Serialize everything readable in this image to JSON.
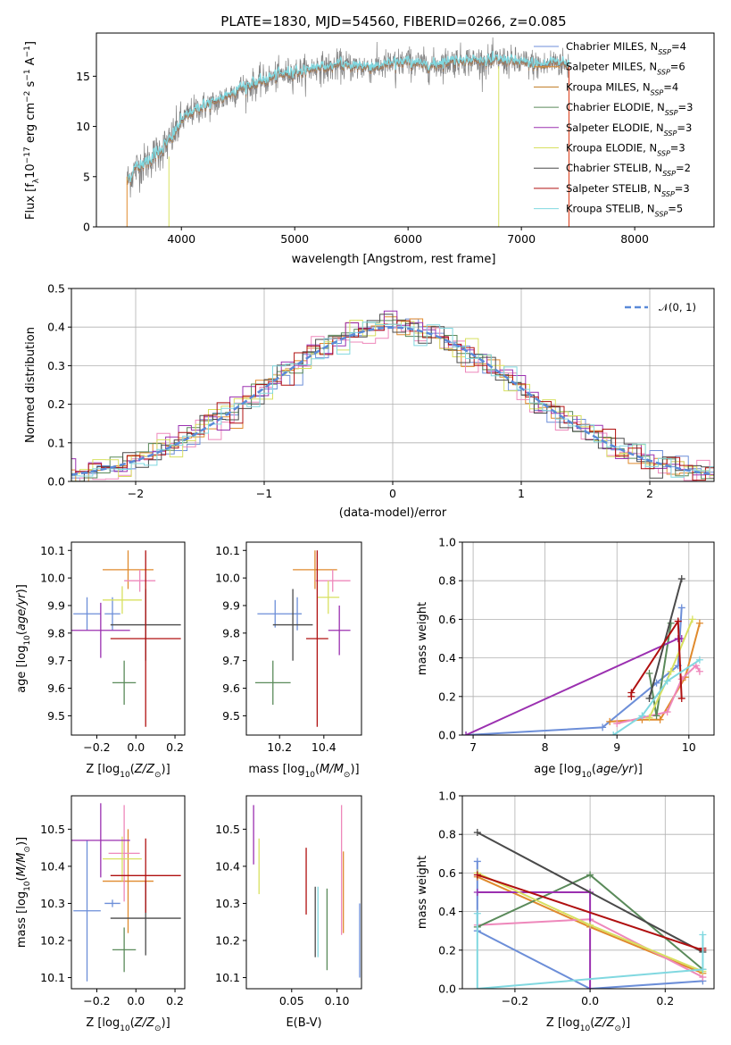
{
  "title": "PLATE=1830, MJD=54560, FIBERID=0266, z=0.085",
  "colors": [
    "#6c8ed8",
    "#e08a2d",
    "#ee88bb",
    "#5a8a5a",
    "#9b30b0",
    "#d8e060",
    "#4a4a4a",
    "#b01010",
    "#80d8e0"
  ],
  "chart_data": [
    {
      "id": "spectrum",
      "type": "line",
      "xlabel": "wavelength [Angstrom, rest frame]",
      "ylabel": "Flux [f",
      "ylabel_main": "Flux [f",
      "ylabel_sub": "λ",
      "ylabel_mid": "10",
      "ylabel_sup1": "−17",
      "ylabel_mid2": " erg cm",
      "ylabel_sup2": "−2",
      "ylabel_mid3": " s",
      "ylabel_sup3": "−1",
      "ylabel_mid4": " A",
      "ylabel_sup4": "−1",
      "ylabel_end": "]",
      "xlim": [
        3250,
        8700
      ],
      "ylim": [
        0,
        19.3
      ],
      "xticks": [
        4000,
        5000,
        6000,
        7000,
        8000
      ],
      "yticks": [
        0,
        5,
        10,
        15
      ],
      "series": [
        {
          "name": "Chabrier MILES, N",
          "sub": "SSP",
          "suffix": "=4",
          "color": "#6c8ed8"
        },
        {
          "name": "Salpeter MILES, N",
          "sub": "SSP",
          "suffix": "=6",
          "color": "#e08a2d"
        },
        {
          "name": "Kroupa MILES, N",
          "sub": "SSP",
          "suffix": "=4",
          "color": "#c07a20"
        },
        {
          "name": "Chabrier ELODIE, N",
          "sub": "SSP",
          "suffix": "=3",
          "color": "#5a8a5a"
        },
        {
          "name": "Salpeter ELODIE, N",
          "sub": "SSP",
          "suffix": "=3",
          "color": "#9b30b0"
        },
        {
          "name": "Kroupa ELODIE, N",
          "sub": "SSP",
          "suffix": "=3",
          "color": "#d8e060"
        },
        {
          "name": "Chabrier STELIB, N",
          "sub": "SSP",
          "suffix": "=2",
          "color": "#4a4a4a"
        },
        {
          "name": "Salpeter STELIB, N",
          "sub": "SSP",
          "suffix": "=3",
          "color": "#b01010"
        },
        {
          "name": "Kroupa STELIB, N",
          "sub": "SSP",
          "suffix": "=5",
          "color": "#80d8e0"
        }
      ],
      "anchors_x": [
        3520,
        3600,
        3700,
        3800,
        3900,
        4000,
        4100,
        4200,
        4300,
        4400,
        4500,
        4600,
        4700,
        4800,
        4900,
        5000,
        5100,
        5200,
        5300,
        5400,
        5500,
        5600,
        5700,
        5800,
        5900,
        6000,
        6100,
        6200,
        6300,
        6400,
        6500,
        6600,
        6700,
        6800,
        6900,
        7000,
        7100,
        7200,
        7300,
        7420
      ],
      "anchors_y": [
        4.5,
        5.8,
        6.5,
        7.5,
        8.5,
        10.5,
        11.5,
        12.0,
        12.3,
        13.0,
        13.7,
        14.0,
        14.4,
        14.8,
        15.2,
        15.4,
        15.5,
        15.9,
        15.8,
        16.1,
        16.0,
        15.9,
        15.9,
        16.1,
        16.3,
        16.4,
        16.2,
        16.0,
        16.3,
        16.5,
        16.6,
        16.5,
        16.4,
        16.6,
        16.4,
        16.3,
        16.2,
        16.0,
        16.5,
        16.0
      ]
    },
    {
      "id": "residuals",
      "type": "step",
      "xlabel": "(data-model)/error",
      "ylabel": "Normed distribution",
      "xlim": [
        -2.5,
        2.5
      ],
      "ylim": [
        0,
        0.5
      ],
      "xticks": [
        -2,
        -1,
        0,
        1,
        2
      ],
      "xtick_labels": [
        "−2",
        "−1",
        "0",
        "1",
        "2"
      ],
      "yticks": [
        0.0,
        0.1,
        0.2,
        0.3,
        0.4,
        0.5
      ],
      "ytick_labels": [
        "0.0",
        "0.1",
        "0.2",
        "0.3",
        "0.4",
        "0.5"
      ],
      "legend": "𝒩(0, 1)",
      "legend_position": "top-right",
      "bin_width": 0.1
    },
    {
      "id": "age-vs-Z",
      "type": "errorbar",
      "xlabel": "Z [log",
      "xlabel_sub": "10",
      "xlabel_rest": "(Z/Z",
      "xlabel_sun": "⊙",
      "xlabel_end": ")]",
      "ylabel": "age  [log",
      "ylabel_sub": "10",
      "ylabel_rest": "(age/yr)]",
      "xlim": [
        -0.33,
        0.25
      ],
      "ylim": [
        9.43,
        10.13
      ],
      "xticks": [
        -0.2,
        0.0,
        0.2
      ],
      "xtick_labels": [
        "−0.2",
        "0.0",
        "0.2"
      ],
      "yticks": [
        9.5,
        9.6,
        9.7,
        9.8,
        9.9,
        10.0,
        10.1
      ],
      "ytick_labels": [
        "9.5",
        "9.6",
        "9.7",
        "9.8",
        "9.9",
        "10.0",
        "10.1"
      ],
      "points": [
        {
          "x": -0.25,
          "xe": 0.07,
          "y": 9.87,
          "ye": 0.06,
          "color": "#6c8ed8"
        },
        {
          "x": -0.12,
          "xe": 0.04,
          "y": 9.87,
          "ye": 0.06,
          "color": "#6c8ed8"
        },
        {
          "x": -0.04,
          "xe": 0.13,
          "y": 10.03,
          "ye": 0.07,
          "color": "#e08a2d"
        },
        {
          "x": 0.02,
          "xe": 0.08,
          "y": 9.99,
          "ye": 0.04,
          "color": "#ee88bb"
        },
        {
          "x": -0.07,
          "xe": 0.1,
          "y": 9.92,
          "ye": 0.05,
          "color": "#d8e060"
        },
        {
          "x": -0.18,
          "xe": 0.15,
          "y": 9.81,
          "ye": 0.1,
          "color": "#9b30b0"
        },
        {
          "x": -0.06,
          "xe": 0.06,
          "y": 9.62,
          "ye": 0.08,
          "color": "#5a8a5a"
        },
        {
          "x": 0.05,
          "xe": 0.18,
          "y": 9.83,
          "ye": 0.13,
          "color": "#4a4a4a"
        },
        {
          "x": 0.05,
          "xe": 0.18,
          "y": 9.78,
          "ye": 0.32,
          "color": "#b01010"
        }
      ]
    },
    {
      "id": "age-vs-mass",
      "type": "errorbar",
      "xlabel": "mass [log",
      "xlabel_sub": "10",
      "xlabel_rest": "(M/M",
      "xlabel_sun": "⊙",
      "xlabel_end": ")]",
      "xlim": [
        10.05,
        10.57
      ],
      "ylim": [
        9.43,
        10.13
      ],
      "xticks": [
        10.2,
        10.4
      ],
      "xtick_labels": [
        "10.2",
        "10.4"
      ],
      "yticks": [
        9.5,
        9.6,
        9.7,
        9.8,
        9.9,
        10.0,
        10.1
      ],
      "ytick_labels": [
        "9.5",
        "9.6",
        "9.7",
        "9.8",
        "9.9",
        "10.0",
        "10.1"
      ],
      "points": [
        {
          "x": 10.18,
          "xe": 0.08,
          "y": 9.87,
          "ye": 0.05,
          "color": "#6c8ed8"
        },
        {
          "x": 10.28,
          "xe": 0.02,
          "y": 9.87,
          "ye": 0.06,
          "color": "#6c8ed8"
        },
        {
          "x": 10.36,
          "xe": 0.1,
          "y": 10.03,
          "ye": 0.07,
          "color": "#e08a2d"
        },
        {
          "x": 10.44,
          "xe": 0.08,
          "y": 9.99,
          "ye": 0.04,
          "color": "#ee88bb"
        },
        {
          "x": 10.42,
          "xe": 0.05,
          "y": 9.93,
          "ye": 0.06,
          "color": "#d8e060"
        },
        {
          "x": 10.47,
          "xe": 0.05,
          "y": 9.81,
          "ye": 0.09,
          "color": "#9b30b0"
        },
        {
          "x": 10.17,
          "xe": 0.08,
          "y": 9.62,
          "ye": 0.08,
          "color": "#5a8a5a"
        },
        {
          "x": 10.26,
          "xe": 0.09,
          "y": 9.83,
          "ye": 0.13,
          "color": "#4a4a4a"
        },
        {
          "x": 10.37,
          "xe": 0.05,
          "y": 9.78,
          "ye": 0.32,
          "color": "#b01010"
        }
      ]
    },
    {
      "id": "weight-vs-age",
      "type": "line",
      "xlabel": "age  [log",
      "xlabel_sub": "10",
      "xlabel_rest": "(age/yr)]",
      "ylabel": "mass weight",
      "xlim": [
        6.85,
        10.35
      ],
      "ylim": [
        0,
        1
      ],
      "xticks": [
        7,
        8,
        9,
        10
      ],
      "yticks": [
        0.0,
        0.2,
        0.4,
        0.6,
        0.8,
        1.0
      ],
      "ytick_labels": [
        "0.0",
        "0.2",
        "0.4",
        "0.6",
        "0.8",
        "1.0"
      ],
      "series": [
        {
          "color": "#6c8ed8",
          "x": [
            6.9,
            8.8,
            9.55,
            9.85,
            9.9
          ],
          "y": [
            0.0,
            0.04,
            0.27,
            0.36,
            0.66
          ]
        },
        {
          "color": "#e08a2d",
          "x": [
            8.9,
            9.35,
            9.6,
            9.95,
            10.15
          ],
          "y": [
            0.07,
            0.08,
            0.08,
            0.3,
            0.58
          ]
        },
        {
          "color": "#ee88bb",
          "x": [
            9.0,
            9.7,
            9.9,
            10.1,
            10.15
          ],
          "y": [
            0.06,
            0.12,
            0.29,
            0.36,
            0.33
          ]
        },
        {
          "color": "#5a8a5a",
          "x": [
            9.45,
            9.55,
            9.75
          ],
          "y": [
            0.32,
            0.1,
            0.58
          ]
        },
        {
          "color": "#9b30b0",
          "x": [
            6.9,
            9.85,
            9.9
          ],
          "y": [
            0.0,
            0.5,
            0.5
          ]
        },
        {
          "color": "#d8e060",
          "x": [
            9.45,
            9.75,
            10.05
          ],
          "y": [
            0.09,
            0.33,
            0.6
          ]
        },
        {
          "color": "#4a4a4a",
          "x": [
            9.45,
            9.9
          ],
          "y": [
            0.19,
            0.81
          ]
        },
        {
          "color": "#b01010",
          "x": [
            9.2,
            9.2,
            9.85,
            9.9
          ],
          "y": [
            0.2,
            0.22,
            0.59,
            0.19
          ]
        },
        {
          "color": "#80d8e0",
          "x": [
            8.95,
            9.35,
            9.7,
            10.15
          ],
          "y": [
            0.0,
            0.1,
            0.28,
            0.39
          ]
        }
      ]
    },
    {
      "id": "mass-vs-Z",
      "type": "errorbar",
      "xlabel": "Z [log",
      "xlabel_sub": "10",
      "xlabel_rest": "(Z/Z",
      "xlabel_sun": "⊙",
      "xlabel_end": ")]",
      "ylabel": "mass [log",
      "ylabel_sub": "10",
      "ylabel_rest": "(M/M",
      "ylabel_sun": "⊙",
      "ylabel_end": ")]",
      "xlim": [
        -0.33,
        0.25
      ],
      "ylim": [
        10.07,
        10.59
      ],
      "xticks": [
        -0.2,
        0.0,
        0.2
      ],
      "xtick_labels": [
        "−0.2",
        "0.0",
        "0.2"
      ],
      "yticks": [
        10.1,
        10.2,
        10.3,
        10.4,
        10.5
      ],
      "ytick_labels": [
        "10.1",
        "10.2",
        "10.3",
        "10.4",
        "10.5"
      ],
      "points": [
        {
          "x": -0.25,
          "xe": 0.07,
          "y": 10.28,
          "ye": 0.19,
          "color": "#6c8ed8"
        },
        {
          "x": -0.12,
          "xe": 0.04,
          "y": 10.3,
          "ye": 0.01,
          "color": "#6c8ed8"
        },
        {
          "x": -0.04,
          "xe": 0.13,
          "y": 10.36,
          "ye": 0.14,
          "color": "#e08a2d"
        },
        {
          "x": -0.06,
          "xe": 0.08,
          "y": 10.435,
          "ye": 0.13,
          "color": "#ee88bb"
        },
        {
          "x": -0.07,
          "xe": 0.1,
          "y": 10.42,
          "ye": 0.06,
          "color": "#d8e060"
        },
        {
          "x": -0.18,
          "xe": 0.15,
          "y": 10.47,
          "ye": 0.1,
          "color": "#9b30b0"
        },
        {
          "x": -0.06,
          "xe": 0.06,
          "y": 10.175,
          "ye": 0.06,
          "color": "#5a8a5a"
        },
        {
          "x": 0.05,
          "xe": 0.18,
          "y": 10.26,
          "ye": 0.1,
          "color": "#4a4a4a"
        },
        {
          "x": 0.05,
          "xe": 0.18,
          "y": 10.375,
          "ye": 0.1,
          "color": "#b01010"
        }
      ]
    },
    {
      "id": "mass-vs-ebv",
      "type": "errorbar",
      "xlabel": "E(B-V)",
      "xlim": [
        0.0,
        0.127
      ],
      "ylim": [
        10.07,
        10.59
      ],
      "xticks": [
        0.05,
        0.1
      ],
      "xtick_labels": [
        "0.05",
        "0.10"
      ],
      "yticks": [
        10.1,
        10.2,
        10.3,
        10.4,
        10.5
      ],
      "ytick_labels": [
        "10.1",
        "10.2",
        "10.3",
        "10.4",
        "10.5"
      ],
      "points": [
        {
          "x": 0.008,
          "y": 10.485,
          "ye": 0.08,
          "color": "#9b30b0"
        },
        {
          "x": 0.014,
          "y": 10.4,
          "ye": 0.075,
          "color": "#d8e060"
        },
        {
          "x": 0.066,
          "y": 10.36,
          "ye": 0.09,
          "color": "#b01010"
        },
        {
          "x": 0.076,
          "y": 10.25,
          "ye": 0.095,
          "color": "#4a4a4a"
        },
        {
          "x": 0.079,
          "y": 10.25,
          "ye": 0.095,
          "color": "#80d8e0"
        },
        {
          "x": 0.089,
          "y": 10.23,
          "ye": 0.11,
          "color": "#5a8a5a"
        },
        {
          "x": 0.105,
          "y": 10.39,
          "ye": 0.175,
          "color": "#ee88bb"
        },
        {
          "x": 0.107,
          "y": 10.33,
          "ye": 0.11,
          "color": "#e08a2d"
        },
        {
          "x": 0.125,
          "y": 10.2,
          "ye": 0.1,
          "color": "#6c8ed8"
        }
      ]
    },
    {
      "id": "weight-vs-Z",
      "type": "line",
      "xlabel": "Z [log",
      "xlabel_sub": "10",
      "xlabel_rest": "(Z/Z",
      "xlabel_sun": "⊙",
      "xlabel_end": ")]",
      "ylabel": "mass weight",
      "xlim": [
        -0.34,
        0.33
      ],
      "ylim": [
        0,
        1
      ],
      "xticks": [
        -0.2,
        0.0,
        0.2
      ],
      "xtick_labels": [
        "−0.2",
        "0.0",
        "0.2"
      ],
      "yticks": [
        0.0,
        0.2,
        0.4,
        0.6,
        0.8,
        1.0
      ],
      "ytick_labels": [
        "0.0",
        "0.2",
        "0.4",
        "0.6",
        "0.8",
        "1.0"
      ],
      "series": [
        {
          "color": "#6c8ed8",
          "x": [
            -0.3,
            -0.3,
            0.0,
            0.3
          ],
          "y": [
            0.66,
            0.3,
            0.0,
            0.04
          ]
        },
        {
          "color": "#e08a2d",
          "x": [
            -0.3,
            0.0,
            0.3
          ],
          "y": [
            0.58,
            0.32,
            0.08
          ]
        },
        {
          "color": "#ee88bb",
          "x": [
            -0.3,
            0.0,
            0.3
          ],
          "y": [
            0.33,
            0.36,
            0.06
          ]
        },
        {
          "color": "#5a8a5a",
          "x": [
            -0.3,
            0.0,
            0.3
          ],
          "y": [
            0.32,
            0.59,
            0.1
          ]
        },
        {
          "color": "#9b30b0",
          "x": [
            -0.3,
            0.0,
            0.0
          ],
          "y": [
            0.5,
            0.5,
            0.0
          ]
        },
        {
          "color": "#d8e060",
          "x": [
            -0.3,
            0.0,
            0.3
          ],
          "y": [
            0.6,
            0.33,
            0.09
          ]
        },
        {
          "color": "#4a4a4a",
          "x": [
            -0.3,
            0.3
          ],
          "y": [
            0.81,
            0.19
          ]
        },
        {
          "color": "#b01010",
          "x": [
            -0.3,
            0.3,
            0.3
          ],
          "y": [
            0.59,
            0.2,
            0.21
          ]
        },
        {
          "color": "#80d8e0",
          "x": [
            -0.3,
            -0.3,
            0.3,
            0.3
          ],
          "y": [
            0.39,
            0.0,
            0.1,
            0.28
          ]
        }
      ]
    }
  ]
}
